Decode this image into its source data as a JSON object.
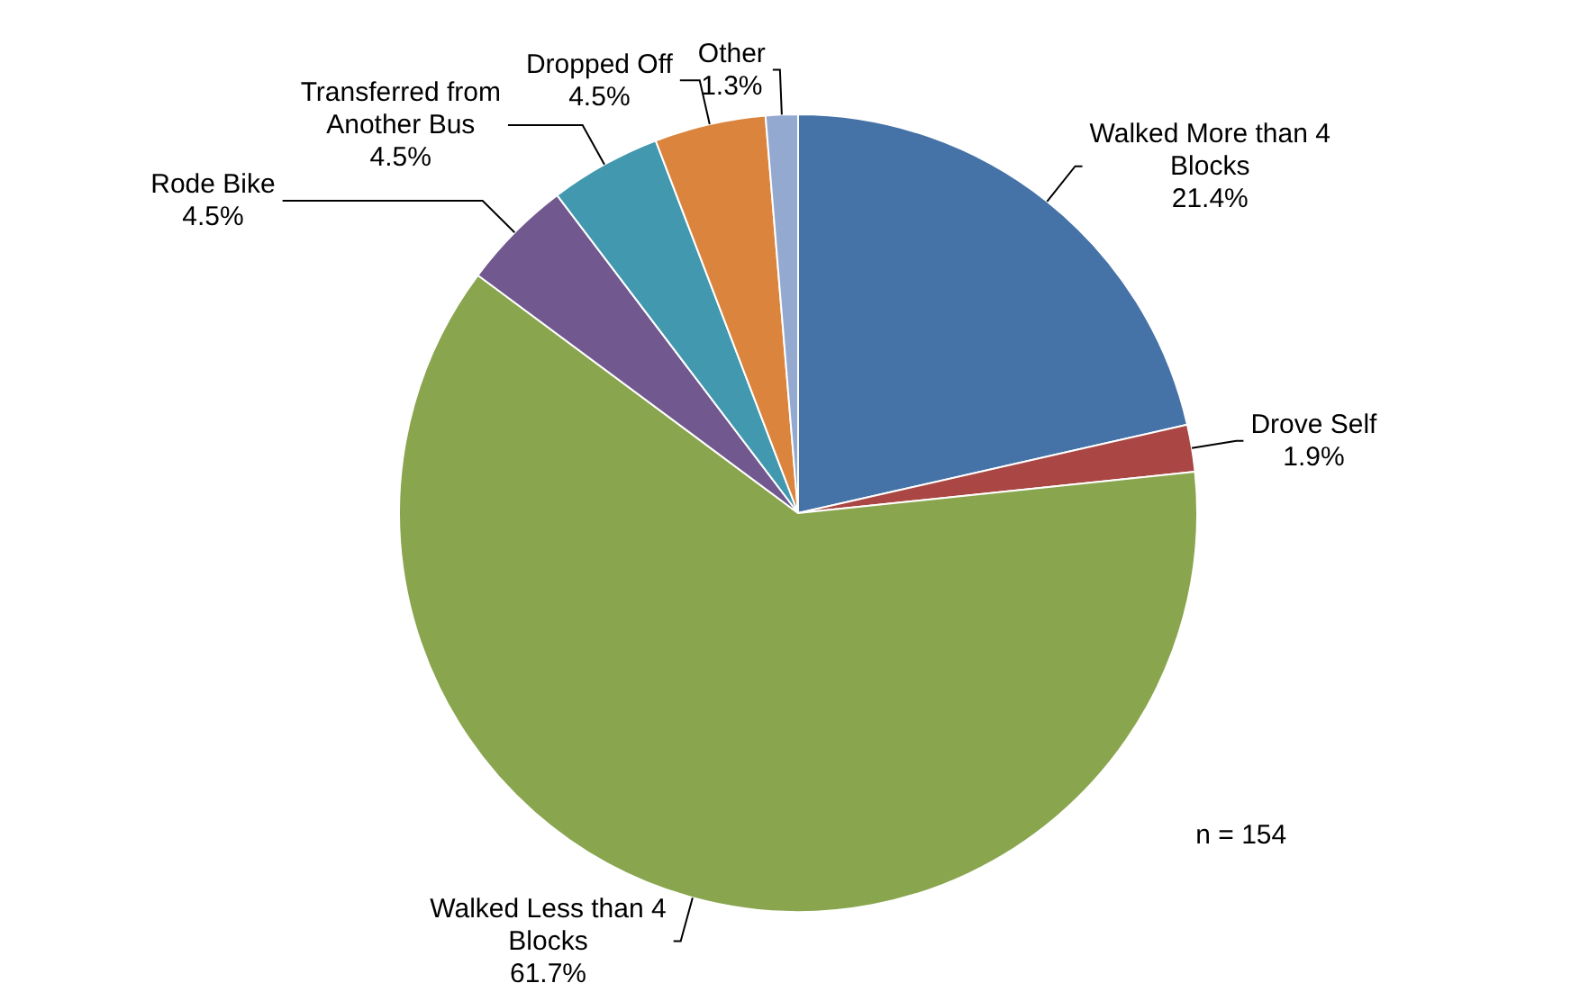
{
  "chart_data": {
    "type": "pie",
    "categories": [
      "Walked More than 4 Blocks",
      "Drove Self",
      "Walked Less than 4 Blocks",
      "Rode Bike",
      "Transferred from Another Bus",
      "Dropped Off",
      "Other"
    ],
    "values": [
      21.4,
      1.9,
      61.7,
      4.5,
      4.5,
      4.5,
      1.3
    ],
    "value_labels": [
      "21.4%",
      "1.9%",
      "61.7%",
      "4.5%",
      "4.5%",
      "4.5%",
      "1.3%"
    ],
    "colors": [
      "#4572a7",
      "#aa4643",
      "#89a54e",
      "#71588f",
      "#4198af",
      "#db843d",
      "#93a9cf"
    ],
    "annotations": [
      "n = 154"
    ],
    "legend": false
  }
}
